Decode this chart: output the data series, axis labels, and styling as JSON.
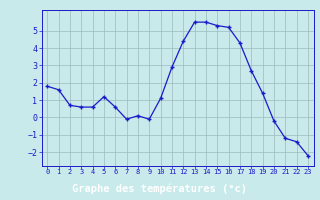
{
  "x": [
    0,
    1,
    2,
    3,
    4,
    5,
    6,
    7,
    8,
    9,
    10,
    11,
    12,
    13,
    14,
    15,
    16,
    17,
    18,
    19,
    20,
    21,
    22,
    23
  ],
  "y": [
    1.8,
    1.6,
    0.7,
    0.6,
    0.6,
    1.2,
    0.6,
    -0.1,
    0.1,
    -0.1,
    1.1,
    2.9,
    4.4,
    5.5,
    5.5,
    5.3,
    5.2,
    4.3,
    2.7,
    1.4,
    -0.2,
    -1.2,
    -1.4,
    -2.2
  ],
  "line_color": "#1a1acc",
  "marker": "+",
  "marker_size": 3.5,
  "bg_color": "#c8eaea",
  "grid_color": "#99bbbb",
  "xlabel": "Graphe des températures (°c)",
  "xlabel_color": "#ffffff",
  "xlabel_bg": "#2222bb",
  "ylim": [
    -2.8,
    6.2
  ],
  "yticks": [
    -2,
    -1,
    0,
    1,
    2,
    3,
    4,
    5
  ],
  "xlim": [
    -0.5,
    23.5
  ],
  "xticks": [
    0,
    1,
    2,
    3,
    4,
    5,
    6,
    7,
    8,
    9,
    10,
    11,
    12,
    13,
    14,
    15,
    16,
    17,
    18,
    19,
    20,
    21,
    22,
    23
  ],
  "tick_fontsize": 5.5,
  "ylabel_fontsize": 6.5,
  "xlabel_fontsize": 7.5
}
